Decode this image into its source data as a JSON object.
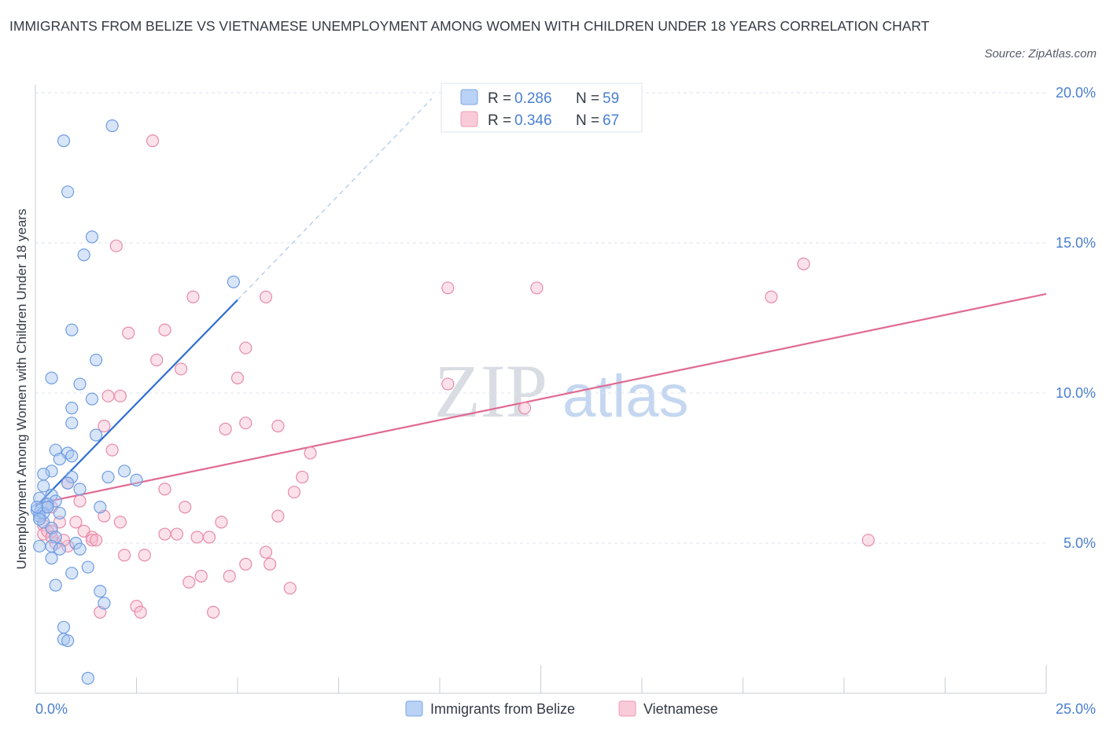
{
  "title": "IMMIGRANTS FROM BELIZE VS VIETNAMESE UNEMPLOYMENT AMONG WOMEN WITH CHILDREN UNDER 18 YEARS CORRELATION CHART",
  "source": "Source: ZipAtlas.com",
  "watermark": {
    "zip": "ZIP",
    "atlas": "atlas"
  },
  "colors": {
    "blue_fill": "#a9c6f2",
    "blue_stroke": "#6f9de0",
    "blue_line": "#2e6fd0",
    "pink_fill": "#f7bfd0",
    "pink_stroke": "#e88aa8",
    "pink_line": "#e06a93",
    "tick_text": "#4a7fd0",
    "grid": "#dde3ec"
  },
  "legend_top": [
    {
      "r_label": "R = ",
      "r_value": "0.286",
      "n_label": "N = ",
      "n_value": "59",
      "color": "blue"
    },
    {
      "r_label": "R = ",
      "r_value": "0.346",
      "n_label": "N = ",
      "n_value": "67",
      "color": "pink"
    }
  ],
  "legend_bottom": [
    "Immigrants from Belize",
    "Vietnamese"
  ],
  "chart_data": {
    "type": "scatter",
    "xlabel": "",
    "ylabel": "Unemployment Among Women with Children Under 18 years",
    "xlim": [
      0,
      25
    ],
    "ylim": [
      0,
      20
    ],
    "x_tick_labels": [
      {
        "value": 0,
        "label": "0.0%"
      },
      {
        "value": 25,
        "label": "25.0%"
      }
    ],
    "y_tick_labels": [
      {
        "value": 5,
        "label": "5.0%"
      },
      {
        "value": 10,
        "label": "10.0%"
      },
      {
        "value": 15,
        "label": "15.0%"
      },
      {
        "value": 20,
        "label": "20.0%"
      }
    ],
    "series": [
      {
        "name": "Immigrants from Belize",
        "color": "blue",
        "trend": {
          "x0": 0,
          "y0": 6.2,
          "x1": 5.0,
          "y1": 13.1,
          "dash_x1": 9.8,
          "dash_y1": 19.8
        },
        "points": [
          [
            1.9,
            18.9
          ],
          [
            0.7,
            18.4
          ],
          [
            0.8,
            16.7
          ],
          [
            1.4,
            15.2
          ],
          [
            1.2,
            14.6
          ],
          [
            4.9,
            13.7
          ],
          [
            0.9,
            12.1
          ],
          [
            1.5,
            11.1
          ],
          [
            0.4,
            10.5
          ],
          [
            1.1,
            10.3
          ],
          [
            1.4,
            9.8
          ],
          [
            0.9,
            9.5
          ],
          [
            0.9,
            9.0
          ],
          [
            1.5,
            8.6
          ],
          [
            0.5,
            8.1
          ],
          [
            0.8,
            8.0
          ],
          [
            0.6,
            7.8
          ],
          [
            0.9,
            7.9
          ],
          [
            0.4,
            7.4
          ],
          [
            0.2,
            7.3
          ],
          [
            2.2,
            7.4
          ],
          [
            1.8,
            7.2
          ],
          [
            2.5,
            7.1
          ],
          [
            0.9,
            7.2
          ],
          [
            0.2,
            6.9
          ],
          [
            0.8,
            7.0
          ],
          [
            1.1,
            6.8
          ],
          [
            0.1,
            6.5
          ],
          [
            0.4,
            6.6
          ],
          [
            0.5,
            6.4
          ],
          [
            0.3,
            6.2
          ],
          [
            0.1,
            6.0
          ],
          [
            0.6,
            6.0
          ],
          [
            1.6,
            6.2
          ],
          [
            0.2,
            5.7
          ],
          [
            0.4,
            5.5
          ],
          [
            0.1,
            5.9
          ],
          [
            0.3,
            6.3
          ],
          [
            0.5,
            5.2
          ],
          [
            0.4,
            4.9
          ],
          [
            0.6,
            4.8
          ],
          [
            0.1,
            4.9
          ],
          [
            1.0,
            5.0
          ],
          [
            1.1,
            4.8
          ],
          [
            0.4,
            4.5
          ],
          [
            1.3,
            4.2
          ],
          [
            0.9,
            4.0
          ],
          [
            0.5,
            3.6
          ],
          [
            1.6,
            3.4
          ],
          [
            1.7,
            3.0
          ],
          [
            0.7,
            2.2
          ],
          [
            0.7,
            1.8
          ],
          [
            0.8,
            1.75
          ],
          [
            1.3,
            0.5
          ],
          [
            0.0,
            6.1
          ],
          [
            0.2,
            6.0
          ],
          [
            0.1,
            5.8
          ],
          [
            0.3,
            6.2
          ],
          [
            0.0,
            6.2
          ]
        ]
      },
      {
        "name": "Vietnamese",
        "color": "pink",
        "trend": {
          "x0": 0,
          "y0": 6.3,
          "x1": 25,
          "y1": 13.3
        },
        "points": [
          [
            2.9,
            18.4
          ],
          [
            2.0,
            14.9
          ],
          [
            19.0,
            14.3
          ],
          [
            3.9,
            13.2
          ],
          [
            5.7,
            13.2
          ],
          [
            10.2,
            13.5
          ],
          [
            12.4,
            13.5
          ],
          [
            18.2,
            13.2
          ],
          [
            3.2,
            12.1
          ],
          [
            2.3,
            12.0
          ],
          [
            5.2,
            11.5
          ],
          [
            3.0,
            11.1
          ],
          [
            3.6,
            10.8
          ],
          [
            5.0,
            10.5
          ],
          [
            10.2,
            10.3
          ],
          [
            1.8,
            9.9
          ],
          [
            2.1,
            9.9
          ],
          [
            12.1,
            9.5
          ],
          [
            5.2,
            9.0
          ],
          [
            4.7,
            8.8
          ],
          [
            6.0,
            8.9
          ],
          [
            1.7,
            8.9
          ],
          [
            1.9,
            8.1
          ],
          [
            6.8,
            8.0
          ],
          [
            6.6,
            7.2
          ],
          [
            0.8,
            7.0
          ],
          [
            3.2,
            6.8
          ],
          [
            6.4,
            6.7
          ],
          [
            1.1,
            6.4
          ],
          [
            3.7,
            6.2
          ],
          [
            0.4,
            6.2
          ],
          [
            1.7,
            5.9
          ],
          [
            6.0,
            5.9
          ],
          [
            0.6,
            5.7
          ],
          [
            2.1,
            5.7
          ],
          [
            1.0,
            5.7
          ],
          [
            0.2,
            5.6
          ],
          [
            4.6,
            5.7
          ],
          [
            0.4,
            5.4
          ],
          [
            0.2,
            5.3
          ],
          [
            1.2,
            5.4
          ],
          [
            3.2,
            5.3
          ],
          [
            3.5,
            5.3
          ],
          [
            1.4,
            5.2
          ],
          [
            1.4,
            5.1
          ],
          [
            1.5,
            5.1
          ],
          [
            4.3,
            5.2
          ],
          [
            4.0,
            5.2
          ],
          [
            0.5,
            5.0
          ],
          [
            0.8,
            4.9
          ],
          [
            20.6,
            5.1
          ],
          [
            5.7,
            4.7
          ],
          [
            2.2,
            4.6
          ],
          [
            2.7,
            4.6
          ],
          [
            5.2,
            4.3
          ],
          [
            5.8,
            4.3
          ],
          [
            4.8,
            3.9
          ],
          [
            4.1,
            3.9
          ],
          [
            3.8,
            3.7
          ],
          [
            6.3,
            3.5
          ],
          [
            2.5,
            2.9
          ],
          [
            1.6,
            2.7
          ],
          [
            2.6,
            2.7
          ],
          [
            4.4,
            2.7
          ],
          [
            0.3,
            5.4
          ],
          [
            0.7,
            5.1
          ],
          [
            0.4,
            5.2
          ]
        ]
      }
    ]
  }
}
